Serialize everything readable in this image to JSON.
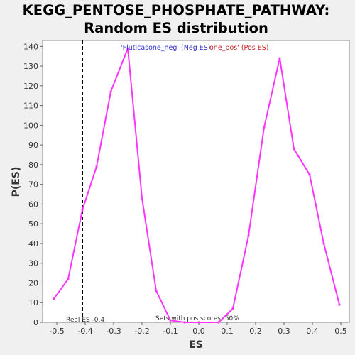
{
  "chart_data": {
    "type": "line",
    "title_line1": "KEGG_PENTOSE_PHOSPHATE_PATHWAY:",
    "title_line2": "Random ES distribution",
    "xlabel": "ES",
    "ylabel": "P(ES)",
    "xlim": [
      -0.55,
      0.53
    ],
    "ylim": [
      0,
      143
    ],
    "xticks": [
      -0.5,
      -0.4,
      -0.3,
      -0.2,
      -0.1,
      0.0,
      0.1,
      0.2,
      0.3,
      0.4,
      0.5
    ],
    "xtick_labels": [
      "-0.5",
      "-0.4",
      "-0.3",
      "-0.2",
      "-0.1",
      "0.0",
      "0.1",
      "0.2",
      "0.3",
      "0.4",
      "0.5"
    ],
    "yticks": [
      0,
      10,
      20,
      30,
      40,
      50,
      60,
      70,
      80,
      90,
      100,
      110,
      120,
      130,
      140
    ],
    "ytick_labels": [
      "0",
      "10",
      "20",
      "30",
      "40",
      "50",
      "60",
      "70",
      "80",
      "90",
      "100",
      "110",
      "120",
      "130",
      "140"
    ],
    "grid": false,
    "line_color": "#ff33ff",
    "series": [
      {
        "x": [
          -0.51,
          -0.46,
          -0.41,
          -0.36,
          -0.31,
          -0.25,
          -0.2,
          -0.15,
          -0.1,
          -0.05,
          0.0,
          0.07,
          0.12,
          0.175,
          0.23,
          0.285,
          0.335,
          0.39,
          0.44,
          0.495
        ],
        "y": [
          12,
          22,
          57,
          79,
          117,
          139,
          63,
          16,
          1,
          0,
          0,
          0,
          7,
          44,
          99,
          134,
          88,
          75,
          40,
          9
        ]
      }
    ],
    "real_es": {
      "value": -0.41,
      "label": "Real ES -0.4",
      "color": "#000000"
    },
    "annotations": {
      "neg_label": "'Fluticasone_neg' (Neg ES)",
      "neg_color": "#3333cc",
      "pos_label": "one_pos' (Pos ES)",
      "pos_color": "#cc2222",
      "sets_label": "Sets with pos scores: 50%"
    }
  }
}
